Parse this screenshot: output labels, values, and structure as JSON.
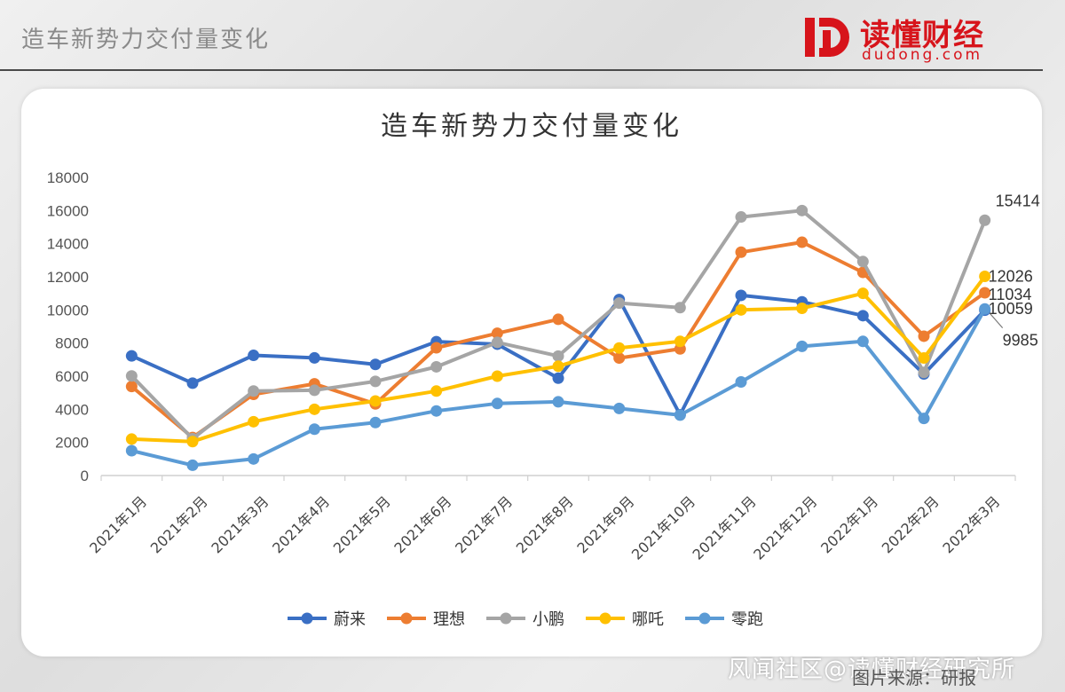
{
  "header": {
    "title": "造车新势力交付量变化"
  },
  "logo": {
    "name": "读懂财经",
    "url": "dudong.com",
    "color": "#d7141b"
  },
  "watermark": "风闻社区@读懂财经研究所",
  "source_note": "图片来源：研报",
  "chart_data": {
    "type": "line",
    "title": "造车新势力交付量变化",
    "categories": [
      "2021年1月",
      "2021年2月",
      "2021年3月",
      "2021年4月",
      "2021年5月",
      "2021年6月",
      "2021年7月",
      "2021年8月",
      "2021年9月",
      "2021年10月",
      "2021年11月",
      "2021年12月",
      "2022年1月",
      "2022年2月",
      "2022年3月"
    ],
    "ylim": [
      0,
      18000
    ],
    "yticks": [
      0,
      2000,
      4000,
      6000,
      8000,
      10000,
      12000,
      14000,
      16000,
      18000
    ],
    "grid": false,
    "legend_position": "bottom",
    "series": [
      {
        "name": "蔚来",
        "color": "#3a6fc4",
        "values": [
          7225,
          5578,
          7257,
          7102,
          6711,
          8083,
          7931,
          5880,
          10628,
          3667,
          10878,
          10489,
          9652,
          6131,
          9985
        ]
      },
      {
        "name": "理想",
        "color": "#ed7d31",
        "values": [
          5379,
          2300,
          4900,
          5539,
          4323,
          7713,
          8589,
          9433,
          7094,
          7649,
          13485,
          14087,
          12268,
          8414,
          11034
        ]
      },
      {
        "name": "小鹏",
        "color": "#a5a5a5",
        "values": [
          6015,
          2223,
          5102,
          5147,
          5686,
          6565,
          8040,
          7214,
          10412,
          10138,
          15613,
          16000,
          12922,
          6225,
          15414
        ]
      },
      {
        "name": "哪吒",
        "color": "#ffc000",
        "values": [
          2200,
          2050,
          3250,
          4000,
          4500,
          5100,
          6000,
          6600,
          7700,
          8100,
          10000,
          10100,
          11000,
          7100,
          12026
        ]
      },
      {
        "name": "零跑",
        "color": "#5b9bd5",
        "values": [
          1500,
          620,
          1000,
          2800,
          3200,
          3900,
          4350,
          4450,
          4050,
          3650,
          5650,
          7800,
          8100,
          3450,
          10059
        ]
      }
    ],
    "data_labels": [
      {
        "series": "小鹏",
        "index": 14,
        "text": "15414"
      },
      {
        "series": "哪吒",
        "index": 14,
        "text": "12026"
      },
      {
        "series": "理想",
        "index": 14,
        "text": "11034"
      },
      {
        "series": "零跑",
        "index": 14,
        "text": "10059"
      },
      {
        "series": "蔚来",
        "index": 14,
        "text": "9985"
      }
    ]
  }
}
